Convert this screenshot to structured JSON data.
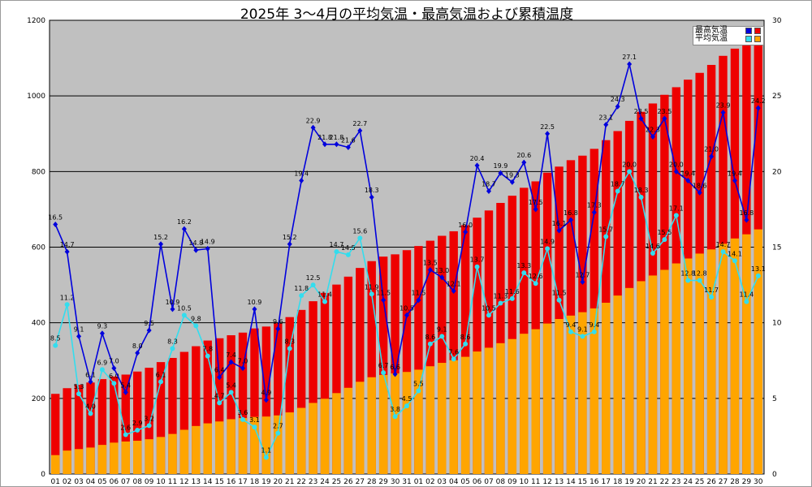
{
  "chart_data": {
    "type": "bar",
    "title": "2025年 3～4月の平均気温・最高気温および累積温度",
    "x": [
      "01",
      "02",
      "03",
      "04",
      "05",
      "06",
      "07",
      "08",
      "09",
      "10",
      "11",
      "12",
      "13",
      "14",
      "15",
      "16",
      "17",
      "18",
      "19",
      "20",
      "21",
      "22",
      "23",
      "24",
      "25",
      "26",
      "27",
      "28",
      "29",
      "30",
      "31",
      "01",
      "02",
      "03",
      "04",
      "05",
      "06",
      "07",
      "08",
      "09",
      "10",
      "11",
      "12",
      "13",
      "14",
      "15",
      "16",
      "17",
      "18",
      "19",
      "20",
      "21",
      "22",
      "23",
      "24",
      "25",
      "26",
      "27",
      "28",
      "29",
      "30"
    ],
    "y_left": {
      "min": 0,
      "max": 1200,
      "ticks": [
        0,
        200,
        400,
        600,
        800,
        1000,
        1200
      ]
    },
    "y_right": {
      "min": 0,
      "max": 30,
      "ticks": [
        0,
        5,
        10,
        15,
        20,
        25,
        30
      ]
    },
    "grid": true,
    "legend_position": "top-right",
    "legend": {
      "max_label": "最高気温",
      "avg_label": "平均気温",
      "max_colors": [
        "#0000dd",
        "#ee0000"
      ],
      "avg_colors": [
        "#33ddee",
        "#ffa500"
      ]
    },
    "series": [
      {
        "name": "最高気温",
        "kind": "line",
        "axis": "right",
        "color": "#0000dd",
        "values": [
          16.5,
          14.7,
          9.1,
          6.1,
          9.3,
          7.0,
          5.4,
          8.0,
          9.5,
          15.2,
          10.9,
          16.2,
          14.8,
          14.9,
          6.4,
          7.4,
          7.0,
          10.9,
          4.9,
          9.6,
          15.2,
          19.4,
          22.9,
          21.8,
          21.8,
          21.6,
          22.7,
          18.3,
          11.5,
          6.6,
          10.5,
          11.5,
          13.5,
          13.0,
          12.1,
          16.0,
          20.4,
          18.7,
          19.9,
          19.3,
          20.6,
          17.5,
          22.5,
          16.1,
          16.8,
          12.7,
          17.3,
          23.1,
          24.3,
          27.1,
          23.5,
          22.3,
          23.5,
          20.0,
          19.4,
          18.6,
          21.0,
          23.9,
          19.4,
          16.8,
          24.2
        ]
      },
      {
        "name": "平均気温",
        "kind": "line",
        "axis": "right",
        "color": "#33ddee",
        "values": [
          8.5,
          11.2,
          5.3,
          4.0,
          6.9,
          6.0,
          2.6,
          2.9,
          3.2,
          6.1,
          8.3,
          10.5,
          9.8,
          7.8,
          4.7,
          5.4,
          3.6,
          3.1,
          1.1,
          2.7,
          8.3,
          11.8,
          12.5,
          11.4,
          14.7,
          14.5,
          15.6,
          11.9,
          6.7,
          3.8,
          4.5,
          5.5,
          8.6,
          9.1,
          7.6,
          8.6,
          13.7,
          10.5,
          11.3,
          11.6,
          13.3,
          12.6,
          14.9,
          11.5,
          9.4,
          9.1,
          9.4,
          15.7,
          18.7,
          20.0,
          18.3,
          14.6,
          15.5,
          17.1,
          12.8,
          12.8,
          11.7,
          14.7,
          14.1,
          11.4,
          13.1
        ]
      },
      {
        "name": "最高気温",
        "kind": "cumulative-bar",
        "axis": "left",
        "color": "#ee0000",
        "values": [
          212,
          227,
          236,
          242,
          251,
          258,
          263,
          271,
          281,
          296,
          307,
          323,
          338,
          353,
          359,
          367,
          374,
          385,
          390,
          399,
          415,
          434,
          457,
          479,
          501,
          522,
          545,
          563,
          575,
          581,
          592,
          603,
          617,
          630,
          642,
          658,
          678,
          697,
          717,
          736,
          757,
          774,
          797,
          813,
          830,
          842,
          860,
          883,
          907,
          934,
          958,
          980,
          1003,
          1023,
          1043,
          1061,
          1082,
          1106,
          1125,
          1142,
          1166
        ]
      },
      {
        "name": "平均気温",
        "kind": "cumulative-bar",
        "axis": "left",
        "color": "#ffa500",
        "values": [
          50,
          62,
          66,
          70,
          77,
          83,
          86,
          88,
          92,
          98,
          106,
          117,
          127,
          134,
          139,
          145,
          148,
          151,
          152,
          155,
          163,
          175,
          188,
          199,
          214,
          228,
          244,
          256,
          262,
          266,
          270,
          276,
          285,
          294,
          301,
          310,
          324,
          334,
          346,
          357,
          371,
          383,
          398,
          410,
          419,
          428,
          438,
          453,
          472,
          492,
          510,
          525,
          540,
          557,
          570,
          583,
          594,
          609,
          623,
          634,
          647
        ]
      }
    ]
  }
}
